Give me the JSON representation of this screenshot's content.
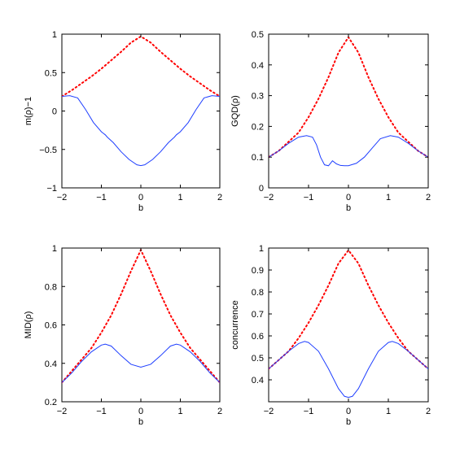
{
  "chart_data": [
    {
      "type": "line",
      "title": "",
      "xlabel": "b",
      "ylabel": "m(ρ)−1",
      "xlim": [
        -2,
        2
      ],
      "ylim": [
        -1,
        1
      ],
      "xticks": [
        -2,
        -1,
        0,
        1,
        2
      ],
      "yticks": [
        -1,
        -0.5,
        0,
        0.5,
        1
      ],
      "xtick_labels": [
        "−2",
        "−1",
        "0",
        "1",
        "2"
      ],
      "ytick_labels": [
        "−1",
        "−0.5",
        "0",
        "0.5",
        "1"
      ],
      "series": [
        {
          "style": "dotted",
          "color": "#ff0000",
          "x": [
            -2,
            -1.75,
            -1.5,
            -1.25,
            -1,
            -0.75,
            -0.5,
            -0.25,
            0,
            0.25,
            0.5,
            0.75,
            1,
            1.25,
            1.5,
            1.75,
            2
          ],
          "y": [
            0.19,
            0.27,
            0.36,
            0.45,
            0.55,
            0.66,
            0.77,
            0.89,
            0.97,
            0.89,
            0.77,
            0.66,
            0.55,
            0.45,
            0.36,
            0.27,
            0.19
          ]
        },
        {
          "style": "solid",
          "color": "#1f3fff",
          "x": [
            -2,
            -1.8,
            -1.6,
            -1.4,
            -1.2,
            -1.0,
            -0.9,
            -0.85,
            -0.7,
            -0.5,
            -0.3,
            -0.1,
            0,
            0.1,
            0.3,
            0.5,
            0.7,
            0.85,
            0.9,
            1.0,
            1.2,
            1.4,
            1.6,
            1.8,
            2
          ],
          "y": [
            0.19,
            0.2,
            0.17,
            0.02,
            -0.15,
            -0.27,
            -0.31,
            -0.34,
            -0.41,
            -0.53,
            -0.63,
            -0.7,
            -0.71,
            -0.7,
            -0.63,
            -0.53,
            -0.41,
            -0.34,
            -0.31,
            -0.27,
            -0.15,
            0.02,
            0.17,
            0.2,
            0.19
          ]
        }
      ]
    },
    {
      "type": "line",
      "title": "",
      "xlabel": "b",
      "ylabel": "GQD(ρ)",
      "xlim": [
        -2,
        2
      ],
      "ylim": [
        0,
        0.5
      ],
      "xticks": [
        -2,
        -1,
        0,
        1,
        2
      ],
      "yticks": [
        0,
        0.1,
        0.2,
        0.3,
        0.4,
        0.5
      ],
      "xtick_labels": [
        "−2",
        "−1",
        "0",
        "1",
        "2"
      ],
      "ytick_labels": [
        "0",
        "0.1",
        "0.2",
        "0.3",
        "0.4",
        "0.5"
      ],
      "series": [
        {
          "style": "dotted",
          "color": "#ff0000",
          "x": [
            -2,
            -1.75,
            -1.5,
            -1.25,
            -1,
            -0.75,
            -0.5,
            -0.25,
            0,
            0.25,
            0.5,
            0.75,
            1,
            1.25,
            1.5,
            1.75,
            2
          ],
          "y": [
            0.1,
            0.12,
            0.15,
            0.18,
            0.23,
            0.29,
            0.36,
            0.44,
            0.49,
            0.44,
            0.36,
            0.29,
            0.23,
            0.18,
            0.15,
            0.12,
            0.1
          ]
        },
        {
          "style": "solid",
          "color": "#1f3fff",
          "x": [
            -2,
            -1.75,
            -1.5,
            -1.25,
            -1.05,
            -0.9,
            -0.8,
            -0.7,
            -0.6,
            -0.5,
            -0.4,
            -0.3,
            -0.2,
            -0.1,
            0,
            0.2,
            0.4,
            0.6,
            0.8,
            1.05,
            1.25,
            1.5,
            1.75,
            2
          ],
          "y": [
            0.1,
            0.12,
            0.145,
            0.165,
            0.17,
            0.165,
            0.14,
            0.1,
            0.075,
            0.072,
            0.088,
            0.078,
            0.073,
            0.072,
            0.072,
            0.08,
            0.1,
            0.13,
            0.16,
            0.17,
            0.165,
            0.145,
            0.12,
            0.1
          ]
        }
      ]
    },
    {
      "type": "line",
      "title": "",
      "xlabel": "b",
      "ylabel": "MID(ρ)",
      "xlim": [
        -2,
        2
      ],
      "ylim": [
        0.2,
        1
      ],
      "xticks": [
        -2,
        -1,
        0,
        1,
        2
      ],
      "yticks": [
        0.2,
        0.4,
        0.6,
        0.8,
        1
      ],
      "xtick_labels": [
        "−2",
        "−1",
        "0",
        "1",
        "2"
      ],
      "ytick_labels": [
        "0.2",
        "0.4",
        "0.6",
        "0.8",
        "1"
      ],
      "series": [
        {
          "style": "dotted",
          "color": "#ff0000",
          "x": [
            -2,
            -1.75,
            -1.5,
            -1.25,
            -1,
            -0.75,
            -0.5,
            -0.25,
            0,
            0.25,
            0.5,
            0.75,
            1,
            1.25,
            1.5,
            1.75,
            2
          ],
          "y": [
            0.3,
            0.36,
            0.42,
            0.48,
            0.56,
            0.65,
            0.76,
            0.88,
            0.99,
            0.88,
            0.76,
            0.65,
            0.56,
            0.48,
            0.42,
            0.36,
            0.3
          ]
        },
        {
          "style": "solid",
          "color": "#1f3fff",
          "x": [
            -2,
            -1.75,
            -1.5,
            -1.25,
            -1,
            -0.9,
            -0.75,
            -0.5,
            -0.25,
            0,
            0.25,
            0.5,
            0.75,
            0.9,
            1,
            1.25,
            1.5,
            1.75,
            2
          ],
          "y": [
            0.3,
            0.35,
            0.41,
            0.46,
            0.495,
            0.5,
            0.49,
            0.44,
            0.395,
            0.38,
            0.395,
            0.44,
            0.49,
            0.5,
            0.495,
            0.46,
            0.41,
            0.35,
            0.3
          ]
        }
      ]
    },
    {
      "type": "line",
      "title": "",
      "xlabel": "b",
      "ylabel": "concurrence",
      "xlim": [
        -2,
        2
      ],
      "ylim": [
        0.3,
        1
      ],
      "xticks": [
        -2,
        -1,
        0,
        1,
        2
      ],
      "yticks": [
        0.4,
        0.5,
        0.6,
        0.7,
        0.8,
        0.9,
        1
      ],
      "xtick_labels": [
        "−2",
        "−1",
        "0",
        "1",
        "2"
      ],
      "ytick_labels": [
        "0.4",
        "0.5",
        "0.6",
        "0.7",
        "0.8",
        "0.9",
        "1"
      ],
      "series": [
        {
          "style": "dotted",
          "color": "#ff0000",
          "x": [
            -2,
            -1.75,
            -1.5,
            -1.25,
            -1,
            -0.75,
            -0.5,
            -0.25,
            0,
            0.25,
            0.5,
            0.75,
            1,
            1.25,
            1.5,
            1.75,
            2
          ],
          "y": [
            0.45,
            0.49,
            0.53,
            0.59,
            0.66,
            0.74,
            0.83,
            0.93,
            0.99,
            0.93,
            0.83,
            0.74,
            0.66,
            0.59,
            0.53,
            0.49,
            0.45
          ]
        },
        {
          "style": "solid",
          "color": "#1f3fff",
          "x": [
            -2,
            -1.75,
            -1.5,
            -1.25,
            -1.1,
            -1,
            -0.75,
            -0.5,
            -0.25,
            -0.1,
            0,
            0.1,
            0.25,
            0.5,
            0.75,
            1,
            1.1,
            1.25,
            1.5,
            1.75,
            2
          ],
          "y": [
            0.45,
            0.49,
            0.53,
            0.565,
            0.575,
            0.57,
            0.53,
            0.45,
            0.36,
            0.325,
            0.32,
            0.325,
            0.36,
            0.45,
            0.53,
            0.57,
            0.575,
            0.565,
            0.53,
            0.49,
            0.45
          ]
        }
      ]
    }
  ]
}
